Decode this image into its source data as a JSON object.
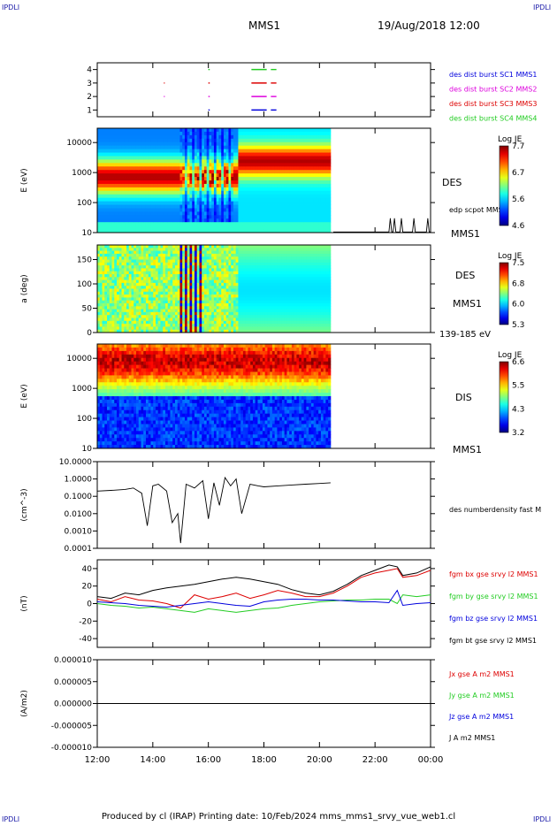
{
  "header": {
    "corner_tl": "IPDLI",
    "corner_tr": "IPDLI",
    "corner_bl": "IPDLI",
    "corner_br": "IPDLI",
    "spacecraft": "MMS1",
    "datetime": "19/Aug/2018 12:00"
  },
  "footer": {
    "text": "Produced by cl (IRAP)   Printing date: 10/Feb/2024   mms_mms1_srvy_vue_web1.cl"
  },
  "colors": {
    "red": "#dd0000",
    "green": "#22cc22",
    "blue": "#0000dd",
    "magenta": "#dd00dd",
    "black": "#000000"
  },
  "time_axis": {
    "start_hour": 12,
    "end_hour": 24,
    "ticks": [
      "12:00",
      "14:00",
      "16:00",
      "18:00",
      "20:00",
      "22:00",
      "00:00"
    ]
  },
  "chart_data": [
    {
      "id": "burst",
      "type": "scatter",
      "ylim": [
        0.5,
        4.5
      ],
      "yticks": [
        "1",
        "2",
        "3",
        "4"
      ],
      "legend": [
        {
          "text": "des dist burst SC1 MMS1",
          "color": "#0000dd"
        },
        {
          "text": "des dist burst SC2 MMS2",
          "color": "#dd00dd"
        },
        {
          "text": "des dist burst SC3 MMS3",
          "color": "#dd0000"
        },
        {
          "text": "des dist burst SC4 MMS4",
          "color": "#22cc22"
        }
      ],
      "segments": [
        {
          "sc": 4,
          "color": "#22cc22",
          "t": [
            [
              16.0,
              16.05
            ],
            [
              17.55,
              18.1
            ],
            [
              18.25,
              18.45
            ]
          ]
        },
        {
          "sc": 3,
          "color": "#dd0000",
          "t": [
            [
              14.4,
              14.43
            ],
            [
              16.0,
              16.05
            ],
            [
              17.55,
              18.1
            ],
            [
              18.25,
              18.45
            ]
          ]
        },
        {
          "sc": 2,
          "color": "#dd00dd",
          "t": [
            [
              14.4,
              14.43
            ],
            [
              16.0,
              16.05
            ],
            [
              17.55,
              18.1
            ],
            [
              18.25,
              18.45
            ]
          ]
        },
        {
          "sc": 1,
          "color": "#0000dd",
          "t": [
            [
              16.0,
              16.05
            ],
            [
              17.55,
              18.1
            ],
            [
              18.25,
              18.45
            ]
          ]
        }
      ]
    },
    {
      "id": "des_energy",
      "type": "heatmap",
      "ylabel": "E (eV)",
      "log_y": true,
      "ylim": [
        10,
        30000
      ],
      "yticks": [
        "10",
        "100",
        "1000",
        "10000"
      ],
      "label_right": "DES",
      "label_sc": "MMS1",
      "overlay_label": "edp scpot MMS1",
      "colorbar": {
        "title": "Log JE",
        "min": 4.6,
        "max": 7.7,
        "ticks": [
          "4.6",
          "5.6",
          "6.7",
          "7.7"
        ]
      },
      "data_end_hour": 20.4,
      "scpot_spike_hours": [
        22.55,
        22.7,
        22.95,
        23.4,
        23.9
      ]
    },
    {
      "id": "des_pitch",
      "type": "heatmap",
      "ylabel": "a (deg)",
      "ylim": [
        0,
        180
      ],
      "yticks": [
        "0",
        "50",
        "100",
        "150"
      ],
      "label_right": "DES",
      "label_sc": "MMS1",
      "energy_range": "139-185 eV",
      "colorbar": {
        "title": "Log JE",
        "min": 5.3,
        "max": 7.5,
        "ticks": [
          "5.3",
          "6.0",
          "6.8",
          "7.5"
        ]
      },
      "data_end_hour": 20.4
    },
    {
      "id": "dis_energy",
      "type": "heatmap",
      "ylabel": "E (eV)",
      "log_y": true,
      "ylim": [
        10,
        30000
      ],
      "yticks": [
        "10",
        "100",
        "1000",
        "10000"
      ],
      "label_right": "DIS",
      "label_sc": "MMS1",
      "colorbar": {
        "title": "Log JE",
        "min": 3.2,
        "max": 6.6,
        "ticks": [
          "3.2",
          "4.3",
          "5.5",
          "6.6"
        ]
      },
      "data_end_hour": 20.4
    },
    {
      "id": "density",
      "type": "line",
      "ylabel": "(cm^-3)",
      "log_y": true,
      "ylim": [
        0.0001,
        10
      ],
      "yticks": [
        "0.0001",
        "0.0010",
        "0.0100",
        "0.1000",
        "1.0000",
        "10.0000"
      ],
      "legend": [
        {
          "text": "des numberdensity fast M",
          "color": "#000000"
        }
      ],
      "x": [
        12.0,
        12.5,
        13.0,
        13.3,
        13.6,
        13.8,
        14.0,
        14.2,
        14.5,
        14.7,
        14.9,
        15.0,
        15.2,
        15.5,
        15.8,
        16.0,
        16.2,
        16.4,
        16.6,
        16.8,
        17.0,
        17.2,
        17.5,
        17.8,
        18.0,
        18.5,
        19.0,
        19.5,
        20.0,
        20.4
      ],
      "values": [
        0.2,
        0.22,
        0.25,
        0.3,
        0.15,
        0.002,
        0.4,
        0.5,
        0.2,
        0.003,
        0.01,
        0.0002,
        0.5,
        0.3,
        0.8,
        0.005,
        0.6,
        0.03,
        1.2,
        0.4,
        1.0,
        0.01,
        0.5,
        0.4,
        0.35,
        0.4,
        0.45,
        0.5,
        0.55,
        0.6
      ]
    },
    {
      "id": "fgm",
      "type": "line",
      "ylabel": "(nT)",
      "ylim": [
        -50,
        50
      ],
      "yticks": [
        "-40",
        "-20",
        "0",
        "20",
        "40"
      ],
      "legend": [
        {
          "text": "fgm bx gse srvy l2 MMS1",
          "color": "#dd0000"
        },
        {
          "text": "fgm by gse srvy l2 MMS1",
          "color": "#22cc22"
        },
        {
          "text": "fgm bz gse srvy l2 MMS1",
          "color": "#0000dd"
        },
        {
          "text": "fgm bt gse srvy l2 MMS1",
          "color": "#000000"
        }
      ],
      "x": [
        12.0,
        12.5,
        13.0,
        13.5,
        14.0,
        14.5,
        15.0,
        15.5,
        16.0,
        16.5,
        17.0,
        17.5,
        18.0,
        18.5,
        19.0,
        19.5,
        20.0,
        20.5,
        21.0,
        21.5,
        22.0,
        22.5,
        22.8,
        23.0,
        23.5,
        24.0
      ],
      "series": [
        {
          "name": "fgm bx gse srvy l2 MMS1",
          "color": "#dd0000",
          "values": [
            5,
            2,
            8,
            4,
            3,
            0,
            -5,
            10,
            5,
            8,
            12,
            6,
            10,
            15,
            12,
            8,
            8,
            12,
            20,
            30,
            35,
            38,
            40,
            30,
            32,
            38
          ]
        },
        {
          "name": "fgm by gse srvy l2 MMS1",
          "color": "#22cc22",
          "values": [
            0,
            -2,
            -3,
            -5,
            -4,
            -6,
            -8,
            -10,
            -6,
            -8,
            -10,
            -8,
            -6,
            -5,
            -2,
            0,
            2,
            3,
            4,
            4,
            5,
            5,
            0,
            10,
            8,
            10
          ]
        },
        {
          "name": "fgm bz gse srvy l2 MMS1",
          "color": "#0000dd",
          "values": [
            2,
            1,
            0,
            -2,
            -3,
            -4,
            -2,
            0,
            2,
            0,
            -2,
            -3,
            2,
            4,
            5,
            5,
            4,
            4,
            3,
            2,
            2,
            1,
            15,
            -2,
            0,
            1
          ]
        },
        {
          "name": "fgm bt gse srvy l2 MMS1",
          "color": "#000000",
          "values": [
            8,
            6,
            12,
            10,
            15,
            18,
            20,
            22,
            25,
            28,
            30,
            28,
            25,
            22,
            16,
            12,
            10,
            14,
            22,
            32,
            38,
            44,
            42,
            32,
            35,
            42
          ]
        }
      ]
    },
    {
      "id": "current",
      "type": "line",
      "ylabel": "(A/m2)",
      "ylim": [
        -1e-05,
        1e-05
      ],
      "yticks": [
        "-0.000010",
        "-0.000005",
        "0.000000",
        "0.000005",
        "0.000010"
      ],
      "legend": [
        {
          "text": "Jx gse A m2 MMS1",
          "color": "#dd0000"
        },
        {
          "text": "Jy gse A m2 MMS1",
          "color": "#22cc22"
        },
        {
          "text": "Jz gse A m2 MMS1",
          "color": "#0000dd"
        },
        {
          "text": "J A m2 MMS1",
          "color": "#000000"
        }
      ],
      "x": [
        12.0,
        16.0,
        20.0,
        24.0
      ],
      "values": [
        0,
        0,
        0,
        0
      ]
    }
  ]
}
